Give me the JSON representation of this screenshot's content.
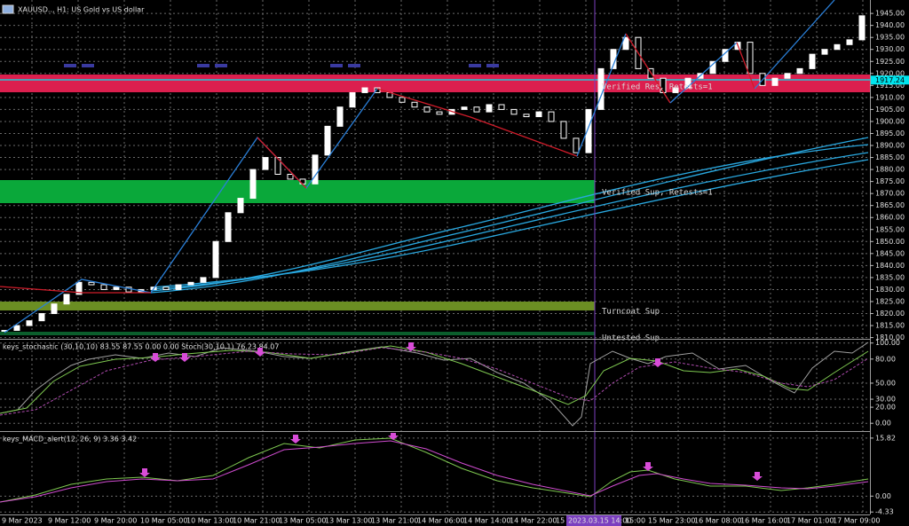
{
  "header": {
    "title": "XAUUSD.., H1: US Gold vs US dollar"
  },
  "main_chart": {
    "ylim": [
      1808,
      1948
    ],
    "yticks": [
      {
        "value": 1945,
        "label": "1945.00"
      },
      {
        "value": 1940,
        "label": "1940.00"
      },
      {
        "value": 1935,
        "label": "1935.00"
      },
      {
        "value": 1930,
        "label": "1930.00"
      },
      {
        "value": 1925,
        "label": "1925.00"
      },
      {
        "value": 1920,
        "label": "1920.00"
      },
      {
        "value": 1915,
        "label": "1915.00"
      },
      {
        "value": 1910,
        "label": "1910.00"
      },
      {
        "value": 1905,
        "label": "1905.00"
      },
      {
        "value": 1900,
        "label": "1900.00"
      },
      {
        "value": 1895,
        "label": "1895.00"
      },
      {
        "value": 1890,
        "label": "1890.00"
      },
      {
        "value": 1885,
        "label": "1885.00"
      },
      {
        "value": 1880,
        "label": "1880.00"
      },
      {
        "value": 1875,
        "label": "1875.00"
      },
      {
        "value": 1870,
        "label": "1870.00"
      },
      {
        "value": 1865,
        "label": "1865.00"
      },
      {
        "value": 1860,
        "label": "1860.00"
      },
      {
        "value": 1855,
        "label": "1855.00"
      },
      {
        "value": 1850,
        "label": "1850.00"
      },
      {
        "value": 1845,
        "label": "1845.00"
      },
      {
        "value": 1840,
        "label": "1840.00"
      },
      {
        "value": 1835,
        "label": "1835.00"
      },
      {
        "value": 1830,
        "label": "1830.00"
      },
      {
        "value": 1825,
        "label": "1825.00"
      },
      {
        "value": 1820,
        "label": "1820.00"
      },
      {
        "value": 1815,
        "label": "1815.00"
      },
      {
        "value": 1810,
        "label": "1810.00"
      }
    ],
    "current_price": {
      "value": 1917.24,
      "label": "1917.24"
    },
    "closes": [
      1813,
      1815,
      1817,
      1820,
      1824,
      1828,
      1833,
      1832,
      1830,
      1831,
      1829,
      1830,
      1831,
      1830,
      1832,
      1833,
      1835,
      1850,
      1862,
      1868,
      1880,
      1885,
      1878,
      1876,
      1874,
      1886,
      1898,
      1906,
      1912,
      1914,
      1912,
      1910,
      1908,
      1906,
      1904,
      1903,
      1905,
      1906,
      1904,
      1907,
      1905,
      1903,
      1902,
      1904,
      1900,
      1893,
      1887,
      1905,
      1922,
      1930,
      1935,
      1922,
      1918,
      1912,
      1914,
      1918,
      1920,
      1925,
      1930,
      1933,
      1920,
      1915,
      1918,
      1920,
      1922,
      1928,
      1930,
      1932,
      1934,
      1944
    ],
    "zones": [
      "Verified Res, Retests=1",
      "Verified Sup, Retests=1",
      "Turncoat Sup",
      "Untested Sup"
    ]
  },
  "stochastic": {
    "title": "keys_stochastic (30,10,10) 83.55 87.55 0.00 0.00 Stoch(30,10,1) 76.23 84.07",
    "ylim": [
      -2,
      103
    ],
    "yticks": [
      {
        "value": 100,
        "label": "100.00"
      },
      {
        "value": 80,
        "label": "80.00"
      },
      {
        "value": 50,
        "label": "50.00"
      },
      {
        "value": 30,
        "label": "30.00"
      },
      {
        "value": 20,
        "label": "20.00"
      },
      {
        "value": 0,
        "label": "0.00"
      }
    ]
  },
  "macd": {
    "title": "keys_MACD_alert(12, 26, 9) 3.36 3.42",
    "ylim": [
      -5,
      17
    ],
    "yticks": [
      {
        "value": 15.82,
        "label": "15.82"
      },
      {
        "value": 0,
        "label": "0.00"
      },
      {
        "value": -4.33,
        "label": "-4.33"
      }
    ]
  },
  "time_axis": {
    "labels": [
      "9 Mar 2023",
      "9 Mar 12:00",
      "9 Mar 20:00",
      "10 Mar 05:00",
      "10 Mar 13:00",
      "10 Mar 21:00",
      "13 Mar 05:00",
      "13 Mar 13:00",
      "13 Mar 21:00",
      "14 Mar 06:00",
      "14 Mar 14:00",
      "14 Mar 22:00",
      "15 M",
      "15:00",
      "15 Mar 23:00",
      "16 Mar 08:00",
      "16 Mar 16:00",
      "17 Mar 01:00",
      "17 Mar 09:00"
    ],
    "cursor_label": "2023.03.15 14:00"
  }
}
